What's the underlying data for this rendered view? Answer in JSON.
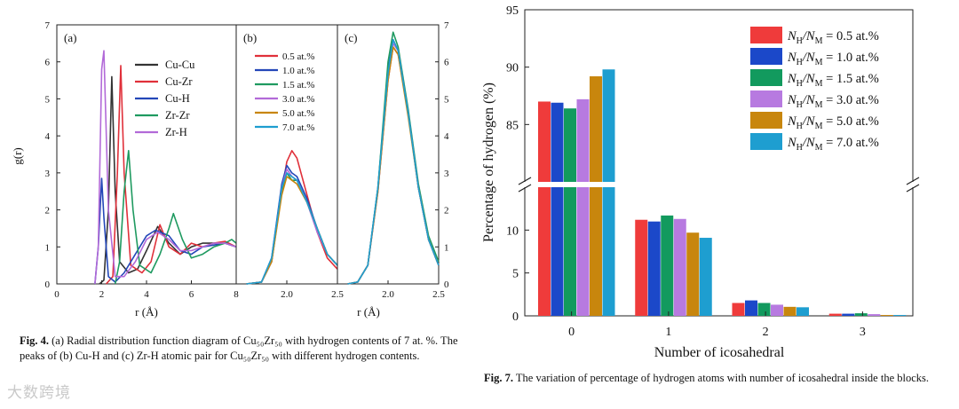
{
  "figure4": {
    "panel_a": {
      "label": "(a)",
      "ylabel": "g(r)",
      "xlabel": "r (Å)",
      "xticks": [
        "0",
        "2",
        "4",
        "6",
        "8"
      ],
      "yticks": [
        "0",
        "1",
        "2",
        "3",
        "4",
        "5",
        "6",
        "7"
      ],
      "legend": [
        {
          "name": "Cu-Cu",
          "color": "#333333"
        },
        {
          "name": "Cu-Zr",
          "color": "#e0303a"
        },
        {
          "name": "Cu-H",
          "color": "#2447b8"
        },
        {
          "name": "Zr-Zr",
          "color": "#1f9a60"
        },
        {
          "name": "Zr-H",
          "color": "#b26ad8"
        }
      ]
    },
    "panel_b": {
      "label": "(b)",
      "xlabel": "",
      "xticks": [
        "2.0",
        "2.5"
      ],
      "legend": [
        {
          "name": "0.5 at.%",
          "color": "#e0303a"
        },
        {
          "name": "1.0 at.%",
          "color": "#2447b8"
        },
        {
          "name": "1.5 at.%",
          "color": "#1f9a60"
        },
        {
          "name": "3.0 at.%",
          "color": "#b26ad8"
        },
        {
          "name": "5.0 at.%",
          "color": "#c8860d"
        },
        {
          "name": "7.0 at.%",
          "color": "#1e9ed0"
        }
      ]
    },
    "panel_c": {
      "label": "(c)",
      "xlabel": "r (Å)",
      "xticks": [
        "2.0",
        "2.5"
      ],
      "yticks": [
        "0",
        "1",
        "2",
        "3",
        "4",
        "5",
        "6",
        "7"
      ]
    },
    "caption_label": "Fig. 4.",
    "caption_text": " (a) Radial distribution function diagram of Cu₅₀Zr₅₀ with hydrogen contents of 7 at. %. The peaks of (b) Cu-H and (c) Zr-H atomic pair for Cu₅₀Zr₅₀ with different hydrogen contents."
  },
  "chart_data": [
    {
      "type": "line",
      "title": "(a)",
      "xlabel": "r (Å)",
      "ylabel": "g(r)",
      "xlim": [
        0,
        8
      ],
      "ylim": [
        0,
        7
      ],
      "series": [
        {
          "name": "Cu-Cu",
          "x": [
            1.9,
            2.1,
            2.3,
            2.45,
            2.6,
            2.8,
            3.2,
            3.6,
            4.0,
            4.5,
            5.0,
            5.5,
            6.0,
            6.5,
            7.0,
            7.5,
            8.0
          ],
          "values": [
            0,
            0.1,
            2.0,
            5.6,
            2.5,
            0.6,
            0.3,
            0.4,
            0.9,
            1.55,
            1.1,
            0.8,
            1.0,
            1.1,
            1.1,
            1.1,
            1.0
          ]
        },
        {
          "name": "Cu-Zr",
          "x": [
            2.2,
            2.5,
            2.7,
            2.85,
            3.0,
            3.3,
            3.8,
            4.2,
            4.6,
            5.0,
            5.5,
            6.0,
            6.5,
            7.0,
            7.5,
            8.0
          ],
          "values": [
            0,
            0.2,
            3.0,
            5.9,
            3.0,
            0.5,
            0.3,
            0.6,
            1.6,
            1.0,
            0.8,
            1.1,
            1.0,
            1.1,
            1.15,
            1.0
          ]
        },
        {
          "name": "Cu-H",
          "x": [
            1.7,
            1.85,
            2.0,
            2.1,
            2.3,
            2.6,
            3.0,
            3.5,
            4.0,
            4.4,
            5.0,
            5.5,
            6.0,
            6.5,
            7.0,
            7.5,
            8.0
          ],
          "values": [
            0,
            1.0,
            2.85,
            1.8,
            0.2,
            0.05,
            0.3,
            0.8,
            1.3,
            1.45,
            1.3,
            0.9,
            0.8,
            1.0,
            1.05,
            1.1,
            1.0
          ]
        },
        {
          "name": "Zr-Zr",
          "x": [
            2.6,
            2.8,
            3.0,
            3.2,
            3.4,
            3.7,
            4.2,
            4.6,
            5.0,
            5.2,
            5.6,
            6.0,
            6.5,
            7.0,
            7.5,
            7.8,
            8.0
          ],
          "values": [
            0,
            0.6,
            2.5,
            3.6,
            2.0,
            0.5,
            0.3,
            0.8,
            1.5,
            1.9,
            1.2,
            0.7,
            0.8,
            1.0,
            1.1,
            1.2,
            1.1
          ]
        },
        {
          "name": "Zr-H",
          "x": [
            1.7,
            1.85,
            2.0,
            2.1,
            2.3,
            2.6,
            3.0,
            3.5,
            4.0,
            4.5,
            5.0,
            5.5,
            6.0,
            6.5,
            7.0,
            7.5,
            8.0
          ],
          "values": [
            0,
            1.0,
            5.8,
            6.3,
            2.0,
            0.2,
            0.2,
            0.6,
            1.2,
            1.4,
            1.2,
            0.9,
            0.9,
            1.0,
            1.1,
            1.1,
            1.0
          ]
        }
      ]
    },
    {
      "type": "line",
      "title": "(b)",
      "xlabel": "",
      "xlim": [
        1.5,
        2.5
      ],
      "ylim": [
        0,
        7
      ],
      "series": [
        {
          "name": "0.5 at.%",
          "x": [
            1.6,
            1.75,
            1.85,
            1.95,
            2.0,
            2.05,
            2.1,
            2.2,
            2.3,
            2.4,
            2.5
          ],
          "values": [
            0,
            0.05,
            0.6,
            2.5,
            3.3,
            3.6,
            3.4,
            2.4,
            1.4,
            0.7,
            0.4
          ]
        },
        {
          "name": "1.0 at.%",
          "x": [
            1.6,
            1.75,
            1.85,
            1.95,
            2.0,
            2.05,
            2.1,
            2.2,
            2.3,
            2.4,
            2.5
          ],
          "values": [
            0,
            0.05,
            0.7,
            2.7,
            3.2,
            3.0,
            2.9,
            2.3,
            1.5,
            0.8,
            0.5
          ]
        },
        {
          "name": "1.5 at.%",
          "x": [
            1.6,
            1.75,
            1.85,
            1.95,
            2.0,
            2.05,
            2.1,
            2.2,
            2.3,
            2.4,
            2.5
          ],
          "values": [
            0,
            0.05,
            0.6,
            2.5,
            3.0,
            2.8,
            2.8,
            2.2,
            1.5,
            0.8,
            0.5
          ]
        },
        {
          "name": "3.0 at.%",
          "x": [
            1.6,
            1.75,
            1.85,
            1.95,
            2.0,
            2.05,
            2.1,
            2.2,
            2.3,
            2.4,
            2.5
          ],
          "values": [
            0,
            0.05,
            0.6,
            2.6,
            3.1,
            2.9,
            2.8,
            2.2,
            1.4,
            0.8,
            0.5
          ]
        },
        {
          "name": "5.0 at.%",
          "x": [
            1.6,
            1.75,
            1.85,
            1.95,
            2.0,
            2.05,
            2.1,
            2.2,
            2.3,
            2.4,
            2.5
          ],
          "values": [
            0,
            0.05,
            0.6,
            2.4,
            2.9,
            2.8,
            2.7,
            2.2,
            1.5,
            0.8,
            0.5
          ]
        },
        {
          "name": "7.0 at.%",
          "x": [
            1.6,
            1.75,
            1.85,
            1.95,
            2.0,
            2.05,
            2.1,
            2.2,
            2.3,
            2.4,
            2.5
          ],
          "values": [
            0,
            0.05,
            0.7,
            2.6,
            3.0,
            2.9,
            2.8,
            2.2,
            1.5,
            0.8,
            0.5
          ]
        }
      ]
    },
    {
      "type": "line",
      "title": "(c)",
      "xlabel": "r (Å)",
      "xlim": [
        1.5,
        2.5
      ],
      "ylim": [
        0,
        7
      ],
      "series": [
        {
          "name": "0.5 at.%",
          "x": [
            1.6,
            1.7,
            1.8,
            1.9,
            2.0,
            2.05,
            2.1,
            2.2,
            2.3,
            2.4,
            2.5
          ],
          "values": [
            0,
            0.05,
            0.5,
            2.5,
            5.5,
            6.4,
            6.2,
            4.6,
            2.6,
            1.2,
            0.5
          ]
        },
        {
          "name": "1.0 at.%",
          "x": [
            1.6,
            1.7,
            1.8,
            1.9,
            2.0,
            2.05,
            2.1,
            2.2,
            2.3,
            2.4,
            2.5
          ],
          "values": [
            0,
            0.05,
            0.5,
            2.6,
            5.8,
            6.6,
            6.3,
            4.6,
            2.6,
            1.2,
            0.5
          ]
        },
        {
          "name": "1.5 at.%",
          "x": [
            1.6,
            1.7,
            1.8,
            1.9,
            2.0,
            2.05,
            2.1,
            2.2,
            2.3,
            2.4,
            2.5
          ],
          "values": [
            0,
            0.05,
            0.5,
            2.6,
            6.0,
            6.8,
            6.4,
            4.7,
            2.7,
            1.3,
            0.6
          ]
        },
        {
          "name": "3.0 at.%",
          "x": [
            1.6,
            1.7,
            1.8,
            1.9,
            2.0,
            2.05,
            2.1,
            2.2,
            2.3,
            2.4,
            2.5
          ],
          "values": [
            0,
            0.05,
            0.5,
            2.5,
            5.6,
            6.5,
            6.3,
            4.6,
            2.6,
            1.2,
            0.5
          ]
        },
        {
          "name": "5.0 at.%",
          "x": [
            1.6,
            1.7,
            1.8,
            1.9,
            2.0,
            2.05,
            2.1,
            2.2,
            2.3,
            2.4,
            2.5
          ],
          "values": [
            0,
            0.05,
            0.5,
            2.5,
            5.5,
            6.4,
            6.2,
            4.5,
            2.6,
            1.2,
            0.5
          ]
        },
        {
          "name": "7.0 at.%",
          "x": [
            1.6,
            1.7,
            1.8,
            1.9,
            2.0,
            2.05,
            2.1,
            2.2,
            2.3,
            2.4,
            2.5
          ],
          "values": [
            0,
            0.05,
            0.5,
            2.6,
            5.7,
            6.6,
            6.3,
            4.6,
            2.6,
            1.2,
            0.5
          ]
        }
      ]
    },
    {
      "type": "bar",
      "title": "",
      "xlabel": "Number of icosahedral",
      "ylabel": "Percentage of hydrogen (%)",
      "categories": [
        "0",
        "1",
        "2",
        "3"
      ],
      "yticks_lower": [
        "0",
        "5",
        "10"
      ],
      "yticks_upper": [
        "85",
        "90",
        "95"
      ],
      "series": [
        {
          "name": "0.5 at.%",
          "color": "#ef3b3b",
          "values": [
            87.0,
            11.2,
            1.5,
            0.25
          ]
        },
        {
          "name": "1.0 at.%",
          "color": "#1b48c9",
          "values": [
            86.9,
            11.0,
            1.8,
            0.25
          ]
        },
        {
          "name": "1.5 at.%",
          "color": "#129a5e",
          "values": [
            86.4,
            11.7,
            1.5,
            0.3
          ]
        },
        {
          "name": "3.0 at.%",
          "color": "#b77ae0",
          "values": [
            87.2,
            11.3,
            1.3,
            0.2
          ]
        },
        {
          "name": "5.0 at.%",
          "color": "#c8860d",
          "values": [
            89.2,
            9.7,
            1.05,
            0.1
          ]
        },
        {
          "name": "7.0 at.%",
          "color": "#1e9ed0",
          "values": [
            89.8,
            9.1,
            1.0,
            0.1
          ]
        }
      ],
      "legend_prefix": "N",
      "legend_sub1": "H",
      "legend_mid": "/N",
      "legend_sub2": "M",
      "legend_eq": " = "
    }
  ],
  "figure7": {
    "caption_label": "Fig. 7.",
    "caption_text": " The variation of percentage of hydrogen atoms with number of icosahedral inside the blocks."
  },
  "watermark": "大数跨境"
}
